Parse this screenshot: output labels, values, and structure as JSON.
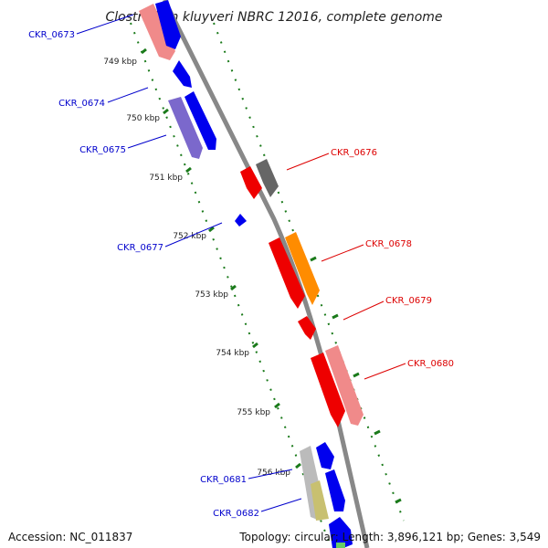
{
  "title": "Clostridium kluyveri NBRC 12016, complete genome",
  "accession": "Accession: NC_011837",
  "summary": "Topology: circular; Length: 3,896,121 bp; Genes: 3,549",
  "colors": {
    "backbone": "#888888",
    "tick": "#1a7a1a",
    "forward_label": "#0000cc",
    "reverse_label": "#dd0000"
  },
  "kbp_ticks": [
    "749 kbp",
    "750 kbp",
    "751 kbp",
    "752 kbp",
    "753 kbp",
    "754 kbp",
    "755 kbp",
    "756 kbp"
  ],
  "gene_labels": [
    {
      "id": "CKR_0673",
      "strand": "forward"
    },
    {
      "id": "CKR_0674",
      "strand": "forward"
    },
    {
      "id": "CKR_0675",
      "strand": "forward"
    },
    {
      "id": "CKR_0676",
      "strand": "reverse"
    },
    {
      "id": "CKR_0677",
      "strand": "forward"
    },
    {
      "id": "CKR_0678",
      "strand": "reverse"
    },
    {
      "id": "CKR_0679",
      "strand": "reverse"
    },
    {
      "id": "CKR_0680",
      "strand": "reverse"
    },
    {
      "id": "CKR_0681",
      "strand": "forward"
    },
    {
      "id": "CKR_0682",
      "strand": "forward"
    }
  ]
}
